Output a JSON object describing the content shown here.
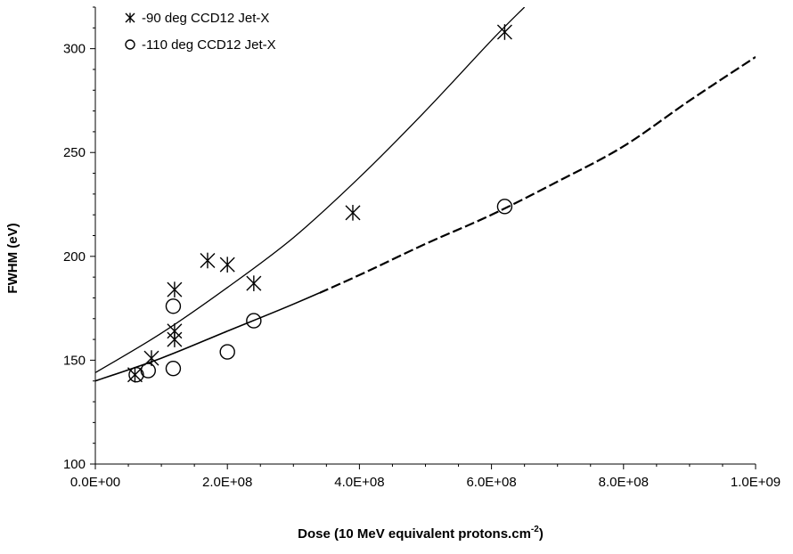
{
  "chart_data": {
    "type": "scatter",
    "xlabel": "Dose (10 MeV equivalent protons.cm",
    "xlabel_superscript": "-2",
    "xlabel_suffix": ")",
    "ylabel": "FWHM (eV)",
    "xlim": [
      0,
      1000000000
    ],
    "ylim": [
      100,
      320
    ],
    "xticks": [
      0,
      200000000,
      400000000,
      600000000,
      800000000,
      1000000000
    ],
    "xtick_labels": [
      "0.0E+00",
      "2.0E+08",
      "4.0E+08",
      "6.0E+08",
      "8.0E+08",
      "1.0E+09"
    ],
    "yticks": [
      100,
      150,
      200,
      250,
      300
    ],
    "ytick_labels": [
      "100",
      "150",
      "200",
      "250",
      "300"
    ],
    "grid": false,
    "legend_position": "top-left",
    "series": [
      {
        "name": "-90 deg CCD12 Jet-X",
        "marker": "asterisk",
        "x": [
          60000000,
          85000000,
          120000000,
          120000000,
          120000000,
          170000000,
          200000000,
          240000000,
          390000000,
          620000000
        ],
        "y": [
          143,
          151,
          184,
          164,
          160,
          198,
          196,
          187,
          221,
          308
        ]
      },
      {
        "name": "-110 deg CCD12 Jet-X",
        "marker": "circle",
        "x": [
          62000000,
          80000000,
          118000000,
          118000000,
          200000000,
          240000000,
          620000000
        ],
        "y": [
          143,
          145,
          176,
          146,
          154,
          169,
          224
        ]
      }
    ],
    "fit_lines": [
      {
        "style": "solid",
        "x": [
          0,
          100000000,
          200000000,
          300000000,
          400000000,
          500000000,
          600000000,
          650000000
        ],
        "y": [
          144,
          163,
          185,
          209,
          238,
          270,
          304,
          320
        ]
      },
      {
        "style": "solid-then-dashed",
        "dash_start": 340000000,
        "x": [
          0,
          100000000,
          200000000,
          300000000,
          400000000,
          500000000,
          600000000,
          700000000,
          800000000,
          900000000,
          1000000000
        ],
        "y": [
          140,
          151,
          164,
          177,
          191,
          206,
          220,
          236,
          253,
          275,
          296
        ]
      }
    ]
  }
}
